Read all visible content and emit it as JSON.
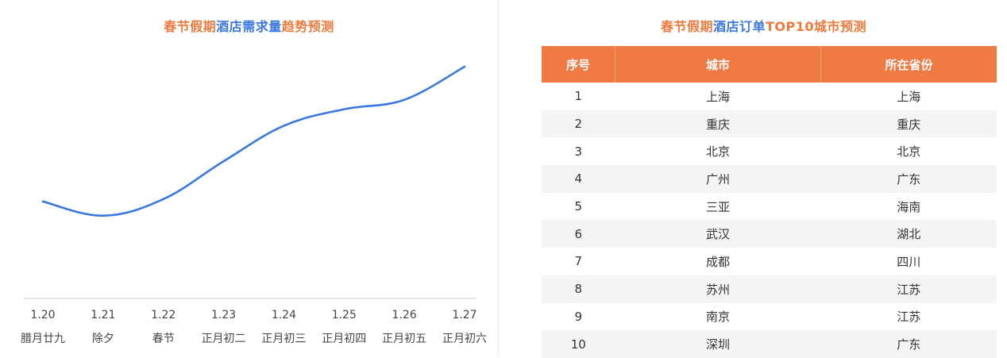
{
  "left_title": {
    "seg1": "春节假期",
    "seg2": "酒店需求量",
    "seg3": "趋势预测"
  },
  "right_title": {
    "seg1": "春节假期",
    "seg2": "酒店订单",
    "seg3": "TOP10城市预测"
  },
  "colors": {
    "accent_orange": "#f07a3e",
    "accent_blue": "#3a78e0",
    "line": "#3a78e0",
    "header_bg": "#ef7a43",
    "row_alt": "#f4f4f4"
  },
  "chart_data": {
    "type": "line",
    "title": "春节假期酒店需求量趋势预测",
    "x": [
      "1.20",
      "1.21",
      "1.22",
      "1.23",
      "1.24",
      "1.25",
      "1.26",
      "1.27"
    ],
    "x_sublabels": [
      "腊月廿九",
      "除夕",
      "春节",
      "正月初二",
      "正月初三",
      "正月初四",
      "正月初五",
      "正月初六"
    ],
    "series": [
      {
        "values": [
          41,
          35,
          42,
          58,
          73,
          80,
          84,
          98
        ]
      }
    ],
    "ylim": [
      0,
      100
    ],
    "y_axis_visible": false,
    "grid": false,
    "legend": "none"
  },
  "table": {
    "headers": [
      "序号",
      "城市",
      "所在省份"
    ],
    "rows": [
      [
        "1",
        "上海",
        "上海"
      ],
      [
        "2",
        "重庆",
        "重庆"
      ],
      [
        "3",
        "北京",
        "北京"
      ],
      [
        "4",
        "广州",
        "广东"
      ],
      [
        "5",
        "三亚",
        "海南"
      ],
      [
        "6",
        "武汉",
        "湖北"
      ],
      [
        "7",
        "成都",
        "四川"
      ],
      [
        "8",
        "苏州",
        "江苏"
      ],
      [
        "9",
        "南京",
        "江苏"
      ],
      [
        "10",
        "深圳",
        "广东"
      ]
    ]
  }
}
